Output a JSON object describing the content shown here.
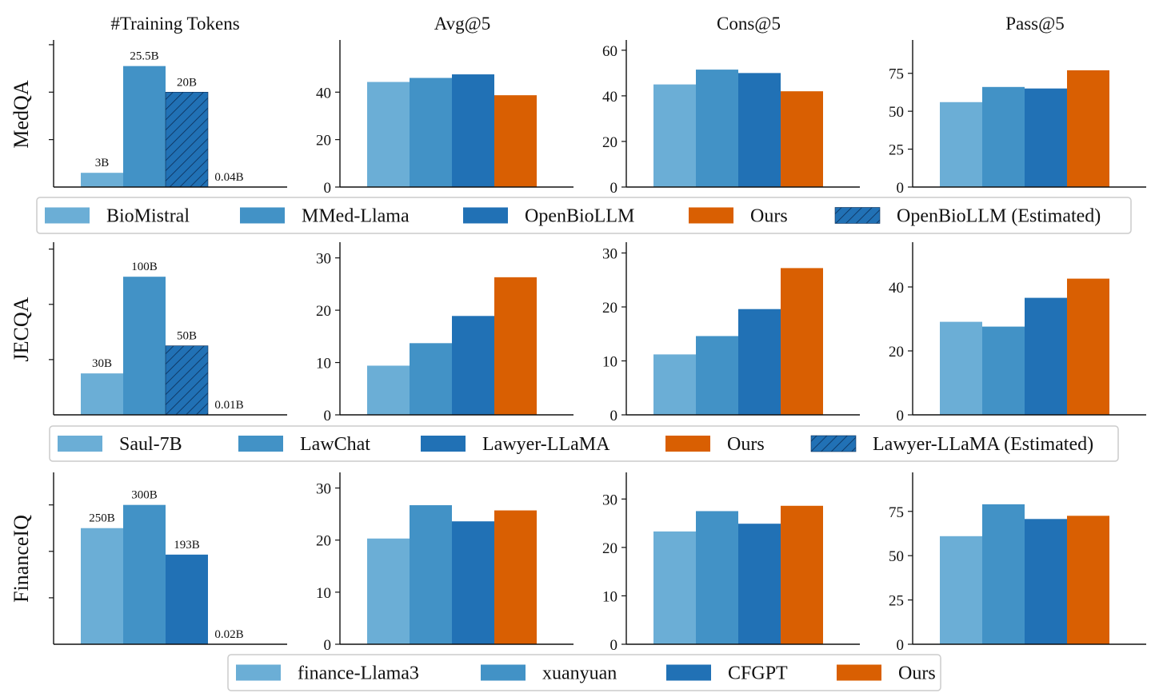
{
  "colors": {
    "c1": "#6baed6",
    "c2": "#4292c6",
    "c3": "#2171b5",
    "ours": "#d95f02",
    "hatch_fill": "#2171b5",
    "hatch_line": "#0b2e57"
  },
  "column_titles": [
    "#Training Tokens",
    "Avg@5",
    "Cons@5",
    "Pass@5"
  ],
  "row_labels": [
    "MedQA",
    "JECQA",
    "FinanceIQ"
  ],
  "legends": [
    {
      "items": [
        {
          "label": "BioMistral",
          "color_key": "c1",
          "hatch": false
        },
        {
          "label": "MMed-Llama",
          "color_key": "c2",
          "hatch": false
        },
        {
          "label": "OpenBioLLM",
          "color_key": "c3",
          "hatch": false
        },
        {
          "label": "Ours",
          "color_key": "ours",
          "hatch": false
        },
        {
          "label": "OpenBioLLM (Estimated)",
          "color_key": "c3",
          "hatch": true
        }
      ]
    },
    {
      "items": [
        {
          "label": "Saul-7B",
          "color_key": "c1",
          "hatch": false
        },
        {
          "label": "LawChat",
          "color_key": "c2",
          "hatch": false
        },
        {
          "label": "Lawyer-LLaMA",
          "color_key": "c3",
          "hatch": false
        },
        {
          "label": "Ours",
          "color_key": "ours",
          "hatch": false
        },
        {
          "label": "Lawyer-LLaMA (Estimated)",
          "color_key": "c3",
          "hatch": true
        }
      ]
    },
    {
      "items": [
        {
          "label": "finance-Llama3",
          "color_key": "c1",
          "hatch": false
        },
        {
          "label": "xuanyuan",
          "color_key": "c2",
          "hatch": false
        },
        {
          "label": "CFGPT",
          "color_key": "c3",
          "hatch": false
        },
        {
          "label": "Ours",
          "color_key": "ours",
          "hatch": false
        }
      ]
    }
  ],
  "chart_data": [
    {
      "type": "bar",
      "row": "MedQA",
      "column": "#Training Tokens",
      "series": [
        "BioMistral",
        "MMed-Llama",
        "OpenBioLLM (Estimated)",
        "Ours"
      ],
      "values": [
        3,
        25.5,
        20,
        0.04
      ],
      "data_labels": [
        "3B",
        "25.5B",
        "20B",
        "0.04B"
      ],
      "ylim": [
        0,
        31
      ],
      "yticks": [],
      "ytick_marks": [
        10,
        20,
        30
      ]
    },
    {
      "type": "bar",
      "row": "MedQA",
      "column": "Avg@5",
      "series": [
        "BioMistral",
        "MMed-Llama",
        "OpenBioLLM",
        "Ours"
      ],
      "values": [
        44.3,
        46,
        47.5,
        38.7
      ],
      "ylim": [
        0,
        62
      ],
      "yticks": [
        0,
        20,
        40
      ]
    },
    {
      "type": "bar",
      "row": "MedQA",
      "column": "Cons@5",
      "series": [
        "BioMistral",
        "MMed-Llama",
        "OpenBioLLM",
        "Ours"
      ],
      "values": [
        45,
        51.5,
        50,
        42
      ],
      "ylim": [
        0,
        64.5
      ],
      "yticks": [
        0,
        20,
        40,
        60
      ]
    },
    {
      "type": "bar",
      "row": "MedQA",
      "column": "Pass@5",
      "series": [
        "BioMistral",
        "MMed-Llama",
        "OpenBioLLM",
        "Ours"
      ],
      "values": [
        56,
        66,
        65,
        77
      ],
      "ylim": [
        0,
        97
      ],
      "yticks": [
        0,
        25,
        50,
        75
      ]
    },
    {
      "type": "bar",
      "row": "JECQA",
      "column": "#Training Tokens",
      "series": [
        "Saul-7B",
        "LawChat",
        "Lawyer-LLaMA (Estimated)",
        "Ours"
      ],
      "values": [
        30,
        100,
        50,
        0.01
      ],
      "data_labels": [
        "30B",
        "100B",
        "50B",
        "0.01B"
      ],
      "ylim": [
        0,
        125
      ],
      "yticks": [],
      "ytick_marks": [
        40,
        80,
        120
      ]
    },
    {
      "type": "bar",
      "row": "JECQA",
      "column": "Avg@5",
      "series": [
        "Saul-7B",
        "LawChat",
        "Lawyer-LLaMA",
        "Ours"
      ],
      "values": [
        9.4,
        13.7,
        18.9,
        26.3
      ],
      "ylim": [
        0,
        33
      ],
      "yticks": [
        0,
        10,
        20,
        30
      ]
    },
    {
      "type": "bar",
      "row": "JECQA",
      "column": "Cons@5",
      "series": [
        "Saul-7B",
        "LawChat",
        "Lawyer-LLaMA",
        "Ours"
      ],
      "values": [
        11.2,
        14.6,
        19.6,
        27.2
      ],
      "ylim": [
        0,
        32
      ],
      "yticks": [
        0,
        10,
        20,
        30
      ]
    },
    {
      "type": "bar",
      "row": "JECQA",
      "column": "Pass@5",
      "series": [
        "Saul-7B",
        "LawChat",
        "Lawyer-LLaMA",
        "Ours"
      ],
      "values": [
        29.1,
        27.6,
        36.6,
        42.6
      ],
      "ylim": [
        0,
        54
      ],
      "yticks": [
        0,
        20,
        40
      ]
    },
    {
      "type": "bar",
      "row": "FinanceIQ",
      "column": "#Training Tokens",
      "series": [
        "finance-Llama3",
        "xuanyuan",
        "CFGPT",
        "Ours"
      ],
      "values": [
        250,
        300,
        193,
        0.02
      ],
      "data_labels": [
        "250B",
        "300B",
        "193B",
        "0.02B"
      ],
      "ylim": [
        0,
        370
      ],
      "yticks": [],
      "ytick_marks": [
        100,
        200,
        300
      ]
    },
    {
      "type": "bar",
      "row": "FinanceIQ",
      "column": "Avg@5",
      "series": [
        "finance-Llama3",
        "xuanyuan",
        "CFGPT",
        "Ours"
      ],
      "values": [
        20.3,
        26.7,
        23.6,
        25.7
      ],
      "ylim": [
        0,
        33
      ],
      "yticks": [
        0,
        10,
        20,
        30
      ]
    },
    {
      "type": "bar",
      "row": "FinanceIQ",
      "column": "Cons@5",
      "series": [
        "finance-Llama3",
        "xuanyuan",
        "CFGPT",
        "Ours"
      ],
      "values": [
        23.3,
        27.5,
        24.9,
        28.6
      ],
      "ylim": [
        0,
        35.5
      ],
      "yticks": [
        0,
        10,
        20,
        30
      ]
    },
    {
      "type": "bar",
      "row": "FinanceIQ",
      "column": "Pass@5",
      "series": [
        "finance-Llama3",
        "xuanyuan",
        "CFGPT",
        "Ours"
      ],
      "values": [
        61,
        79,
        70.7,
        72.5
      ],
      "ylim": [
        0,
        97
      ],
      "yticks": [
        0,
        25,
        50,
        75
      ]
    }
  ]
}
